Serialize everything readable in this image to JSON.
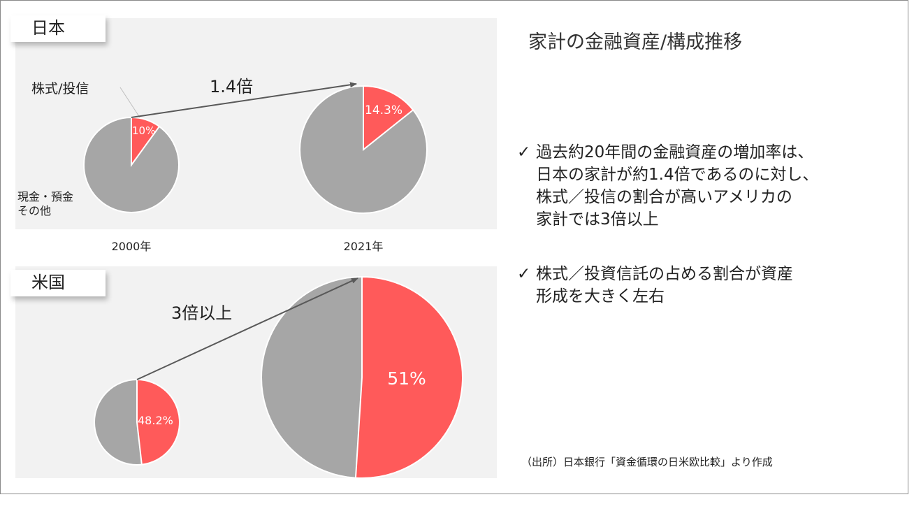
{
  "slide": {
    "title": "家計の金融資産/構成推移",
    "bullets": [
      {
        "mark": "✓",
        "lines": [
          "過去約20年間の金融資産の増加率は、",
          "日本の家計が約1.4倍であるのに対し、",
          "株式／投信の割合が高いアメリカの",
          "家計では3倍以上"
        ]
      },
      {
        "mark": "✓",
        "lines": [
          "株式／投資信託の占める割合が資産",
          "形成を大きく左右"
        ]
      }
    ],
    "source": "（出所）日本銀行「資金循環の日米欧比較」より作成"
  },
  "colors": {
    "stocks": "#ff5a5a",
    "other": "#a6a6a6",
    "panel": "#f2f2f2",
    "arrow": "#595959"
  },
  "chart_data": [
    {
      "type": "pie",
      "panel_label": "日本",
      "category_labels": [
        "株式/投信",
        "現金・預金\nその他"
      ],
      "growth_label": "1.4倍",
      "pies": [
        {
          "year": "2000年",
          "relative_size": 1.0,
          "stocks_pct": 10,
          "stocks_label": "10%"
        },
        {
          "year": "2021年",
          "relative_size": 1.4,
          "stocks_pct": 14.3,
          "stocks_label": "14.3%"
        }
      ]
    },
    {
      "type": "pie",
      "panel_label": "米国",
      "growth_label": "3倍以上",
      "pies": [
        {
          "relative_size": 1.0,
          "stocks_pct": 48.2,
          "stocks_label": "48.2%"
        },
        {
          "relative_size": 3.0,
          "stocks_pct": 51,
          "stocks_label": "51%"
        }
      ]
    }
  ]
}
